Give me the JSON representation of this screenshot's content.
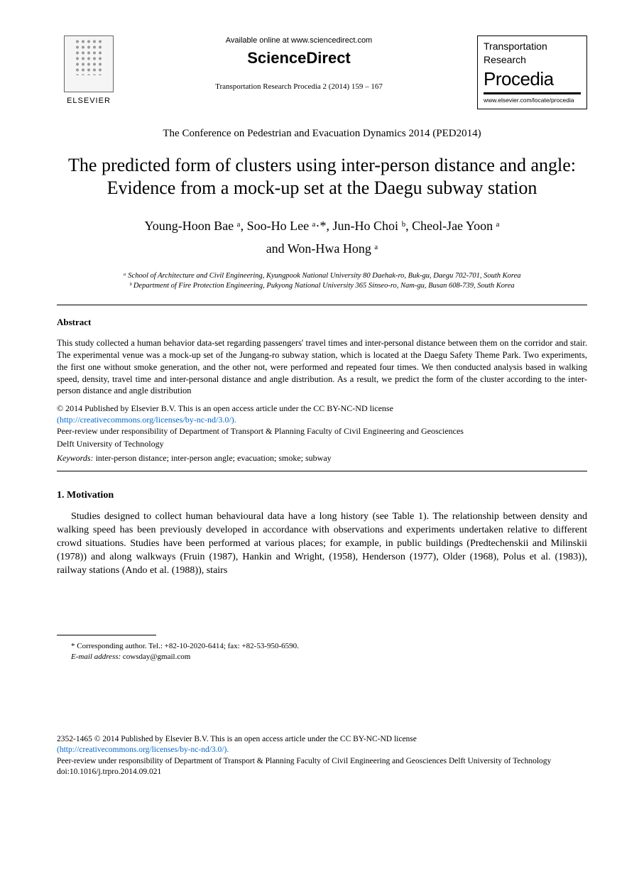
{
  "header": {
    "elsevier_label": "ELSEVIER",
    "available_online": "Available online at www.sciencedirect.com",
    "sciencedirect": "ScienceDirect",
    "journal_ref": "Transportation Research Procedia 2 (2014) 159 – 167",
    "procedia_line1": "Transportation",
    "procedia_line2": "Research",
    "procedia_main": "Procedia",
    "procedia_url": "www.elsevier.com/locate/procedia"
  },
  "conference": "The Conference on Pedestrian and Evacuation Dynamics 2014 (PED2014)",
  "title": "The predicted form of clusters using inter-person distance and angle: Evidence from a mock-up set at the Daegu subway station",
  "authors_line1": "Young-Hoon Bae ᵃ, Soo-Ho Lee ᵃ·*, Jun-Ho Choi ᵇ, Cheol-Jae Yoon ᵃ",
  "authors_line2": "and Won-Hwa Hong ᵃ",
  "affiliations": {
    "a": "ᵃ School of Architecture and Civil Engineering, Kyungpook National University 80 Daehak-ro, Buk-gu, Daegu 702-701, South Korea",
    "b": "ᵇ Department of Fire Protection Engineering, Pukyong National University 365 Sinseo-ro, Nam-gu, Busan 608-739, South Korea"
  },
  "abstract": {
    "heading": "Abstract",
    "text": "This study collected a human behavior data-set regarding passengers' travel times and inter-personal distance between them on the corridor and stair. The experimental venue was a mock-up set of the Jungang-ro subway station, which is located at the Daegu Safety Theme Park. Two experiments, the first one without smoke generation, and the other not, were performed and repeated four times. We then conducted analysis based in walking speed, density, travel time and inter-personal distance and angle distribution. As a result, we predict the form of the cluster according to the inter-person distance and angle distribution",
    "license1": "© 2014 Published by Elsevier B.V. This is an open access article under the CC BY-NC-ND license",
    "license_link": "(http://creativecommons.org/licenses/by-nc-nd/3.0/).",
    "peer_review1": "Peer-review under responsibility of Department of Transport & Planning Faculty of Civil Engineering and Geosciences",
    "peer_review2": "Delft University of Technology",
    "keywords_label": "Keywords:",
    "keywords": " inter-person distance; inter-person angle; evacuation; smoke; subway"
  },
  "section1": {
    "heading": "1. Motivation",
    "body": "Studies designed to collect human behavioural data have a long history (see Table 1). The relationship between density and walking speed has been previously developed in accordance with observations and experiments undertaken relative to different crowd situations. Studies have been performed at various places; for example, in public buildings (Predtechenskii and Milinskii (1978)) and along walkways (Fruin (1987), Hankin and Wright, (1958), Henderson (1977), Older (1968), Polus et al. (1983)), railway stations (Ando et al. (1988)), stairs"
  },
  "footnote": {
    "corr": "* Corresponding author. Tel.: +82-10-2020-6414; fax: +82-53-950-6590.",
    "email_label": "E-mail address:",
    "email": " cowsday@gmail.com"
  },
  "footer": {
    "issn": "2352-1465 © 2014 Published by Elsevier B.V. This is an open access article under the CC BY-NC-ND license",
    "link": "(http://creativecommons.org/licenses/by-nc-nd/3.0/).",
    "peer": "Peer-review under responsibility of Department of Transport & Planning Faculty of Civil Engineering and Geosciences Delft University of Technology",
    "doi": "doi:10.1016/j.trpro.2014.09.021"
  }
}
